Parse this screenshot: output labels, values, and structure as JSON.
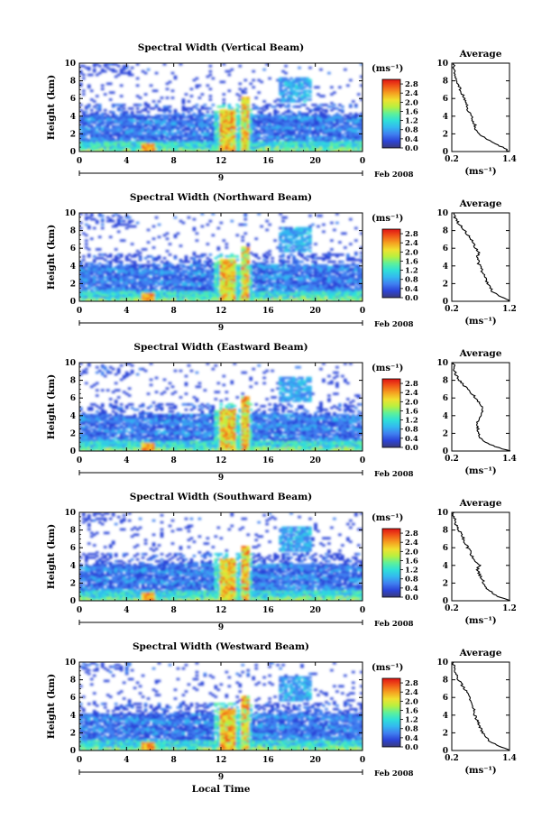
{
  "xlabel_bottom": "Local Time",
  "colorbar": {
    "unit": "(ms⁻¹)",
    "ticks": [
      "0.0",
      "0.4",
      "0.8",
      "1.2",
      "1.6",
      "2.0",
      "2.4",
      "2.8"
    ],
    "range": [
      0.0,
      3.0
    ],
    "colors": [
      "#3a3a7a",
      "#2c44d8",
      "#3f7ff0",
      "#33b8f0",
      "#2fe0d8",
      "#5ef09a",
      "#b8f040",
      "#f0e030",
      "#f5a020",
      "#f05818",
      "#e01414"
    ]
  },
  "xaxis": {
    "ticks": [
      "0",
      "4",
      "8",
      "12",
      "16",
      "20",
      "0"
    ],
    "tick_values": [
      0,
      4,
      8,
      12,
      16,
      20,
      24
    ],
    "range": [
      0,
      24
    ],
    "day_label": "9",
    "month_label": "Feb 2008"
  },
  "yaxis": {
    "label": "Height (km)",
    "ticks": [
      "0",
      "2",
      "4",
      "6",
      "8",
      "10"
    ],
    "range": [
      0,
      10
    ]
  },
  "profile_axis": {
    "title": "Average",
    "xlabel": "(ms⁻¹)",
    "yticks": [
      "0",
      "2",
      "4",
      "6",
      "8",
      "10"
    ]
  },
  "panels": [
    {
      "title": "Spectral Width (Vertical Beam)",
      "profile_ticks": [
        "0.2",
        "1.4"
      ],
      "profile_range": [
        0.2,
        1.4
      ]
    },
    {
      "title": "Spectral Width (Northward Beam)",
      "profile_ticks": [
        "0.2",
        "1.2"
      ],
      "profile_range": [
        0.2,
        1.2
      ]
    },
    {
      "title": "Spectral Width (Eastward Beam)",
      "profile_ticks": [
        "0.2",
        "1.4"
      ],
      "profile_range": [
        0.2,
        1.4
      ]
    },
    {
      "title": "Spectral Width (Southward Beam)",
      "profile_ticks": [
        "0.2",
        "1.2"
      ],
      "profile_range": [
        0.2,
        1.2
      ]
    },
    {
      "title": "Spectral Width (Westward Beam)",
      "profile_ticks": [
        "0.2",
        "1.4"
      ],
      "profile_range": [
        0.2,
        1.4
      ]
    }
  ],
  "chart_data": [
    {
      "type": "heatmap",
      "title": "Spectral Width (Vertical Beam)",
      "xlabel": "",
      "ylabel": "Height (km)",
      "xlim": [
        0,
        24
      ],
      "ylim": [
        0,
        10
      ],
      "zlabel": "(ms⁻¹)",
      "zlim": [
        0,
        3
      ]
    },
    {
      "type": "line",
      "title": "Average",
      "xlabel": "(ms⁻¹)",
      "ylabel": "",
      "xlim": [
        0.2,
        1.4
      ],
      "ylim": [
        0,
        10
      ],
      "x": [
        1.4,
        1.25,
        1.05,
        0.9,
        0.78,
        0.7,
        0.68,
        0.64,
        0.6,
        0.55,
        0.52,
        0.5,
        0.46,
        0.42,
        0.38,
        0.34,
        0.3,
        0.27,
        0.25,
        0.24,
        0.24
      ],
      "y": [
        0,
        0.5,
        1.0,
        1.5,
        2.0,
        2.5,
        3.0,
        3.5,
        4.0,
        4.5,
        5.0,
        5.5,
        6.0,
        6.5,
        7.0,
        7.5,
        8.0,
        8.5,
        9.0,
        9.5,
        10.0
      ]
    },
    {
      "type": "heatmap",
      "title": "Spectral Width (Northward Beam)",
      "xlabel": "",
      "ylabel": "Height (km)",
      "xlim": [
        0,
        24
      ],
      "ylim": [
        0,
        10
      ],
      "zlabel": "(ms⁻¹)",
      "zlim": [
        0,
        3
      ]
    },
    {
      "type": "line",
      "title": "Average",
      "xlabel": "(ms⁻¹)",
      "ylabel": "",
      "xlim": [
        0.2,
        1.2
      ],
      "ylim": [
        0,
        10
      ],
      "x": [
        1.2,
        1.05,
        0.92,
        0.86,
        0.82,
        0.78,
        0.76,
        0.72,
        0.68,
        0.66,
        0.64,
        0.68,
        0.62,
        0.58,
        0.54,
        0.48,
        0.42,
        0.36,
        0.3,
        0.26,
        0.24
      ],
      "y": [
        0,
        0.5,
        1.0,
        1.5,
        2.0,
        2.5,
        3.0,
        3.5,
        4.0,
        4.5,
        5.0,
        5.5,
        6.0,
        6.5,
        7.0,
        7.5,
        8.0,
        8.5,
        9.0,
        9.5,
        10.0
      ]
    },
    {
      "type": "heatmap",
      "title": "Spectral Width (Eastward Beam)",
      "xlabel": "",
      "ylabel": "Height (km)",
      "xlim": [
        0,
        24
      ],
      "ylim": [
        0,
        10
      ],
      "zlabel": "(ms⁻¹)",
      "zlim": [
        0,
        3
      ]
    },
    {
      "type": "line",
      "title": "Average",
      "xlabel": "(ms⁻¹)",
      "ylabel": "",
      "xlim": [
        0.2,
        1.4
      ],
      "ylim": [
        0,
        10
      ],
      "x": [
        1.4,
        1.1,
        0.9,
        0.8,
        0.76,
        0.74,
        0.72,
        0.76,
        0.8,
        0.84,
        0.82,
        0.76,
        0.7,
        0.62,
        0.52,
        0.44,
        0.36,
        0.3,
        0.26,
        0.24,
        0.24
      ],
      "y": [
        0,
        0.5,
        1.0,
        1.5,
        2.0,
        2.5,
        3.0,
        3.5,
        4.0,
        4.5,
        5.0,
        5.5,
        6.0,
        6.5,
        7.0,
        7.5,
        8.0,
        8.5,
        9.0,
        9.5,
        10.0
      ]
    },
    {
      "type": "heatmap",
      "title": "Spectral Width (Southward Beam)",
      "xlabel": "",
      "ylabel": "Height (km)",
      "xlim": [
        0,
        24
      ],
      "ylim": [
        0,
        10
      ],
      "zlabel": "(ms⁻¹)",
      "zlim": [
        0,
        3
      ]
    },
    {
      "type": "line",
      "title": "Average",
      "xlabel": "(ms⁻¹)",
      "ylabel": "",
      "xlim": [
        0.2,
        1.2
      ],
      "ylim": [
        0,
        10
      ],
      "x": [
        1.2,
        1.0,
        0.88,
        0.8,
        0.76,
        0.72,
        0.68,
        0.64,
        0.68,
        0.6,
        0.56,
        0.52,
        0.48,
        0.44,
        0.4,
        0.36,
        0.32,
        0.28,
        0.26,
        0.24,
        0.24
      ],
      "y": [
        0,
        0.5,
        1.0,
        1.5,
        2.0,
        2.5,
        3.0,
        3.5,
        4.0,
        4.5,
        5.0,
        5.5,
        6.0,
        6.5,
        7.0,
        7.5,
        8.0,
        8.5,
        9.0,
        9.5,
        10.0
      ]
    },
    {
      "type": "heatmap",
      "title": "Spectral Width (Westward Beam)",
      "xlabel": "",
      "ylabel": "Height (km)",
      "xlim": [
        0,
        24
      ],
      "ylim": [
        0,
        10
      ],
      "zlabel": "(ms⁻¹)",
      "zlim": [
        0,
        3
      ]
    },
    {
      "type": "line",
      "title": "Average",
      "xlabel": "(ms⁻¹)",
      "ylabel": "",
      "xlim": [
        0.2,
        1.4
      ],
      "ylim": [
        0,
        10
      ],
      "x": [
        1.4,
        1.2,
        1.0,
        0.9,
        0.84,
        0.8,
        0.76,
        0.72,
        0.68,
        0.66,
        0.64,
        0.6,
        0.56,
        0.52,
        0.46,
        0.4,
        0.34,
        0.3,
        0.26,
        0.24,
        0.24
      ],
      "y": [
        0,
        0.5,
        1.0,
        1.5,
        2.0,
        2.5,
        3.0,
        3.5,
        4.0,
        4.5,
        5.0,
        5.5,
        6.0,
        6.5,
        7.0,
        7.5,
        8.0,
        8.5,
        9.0,
        9.5,
        10.0
      ]
    }
  ]
}
